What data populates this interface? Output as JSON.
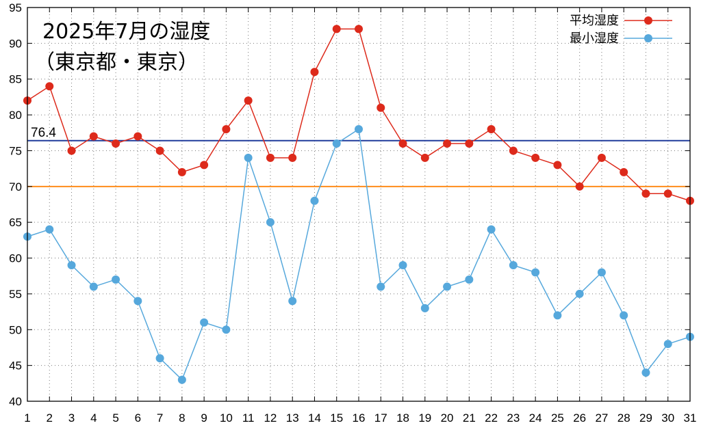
{
  "chart_data": {
    "type": "line",
    "title": "2025年7月の湿度",
    "subtitle": "（東京都・東京）",
    "x": [
      1,
      2,
      3,
      4,
      5,
      6,
      7,
      8,
      9,
      10,
      11,
      12,
      13,
      14,
      15,
      16,
      17,
      18,
      19,
      20,
      21,
      22,
      23,
      24,
      25,
      26,
      27,
      28,
      29,
      30,
      31
    ],
    "xlim": [
      1,
      31
    ],
    "ylim": [
      40,
      95
    ],
    "yticks": [
      40,
      45,
      50,
      55,
      60,
      65,
      70,
      75,
      80,
      85,
      90,
      95
    ],
    "grid": true,
    "legend_position": "top-right",
    "series": [
      {
        "name": "平均湿度",
        "color": "#dd2a1b",
        "values": [
          82,
          84,
          75,
          77,
          76,
          77,
          75,
          72,
          73,
          78,
          82,
          74,
          74,
          86,
          92,
          92,
          81,
          76,
          74,
          76,
          76,
          78,
          75,
          74,
          73,
          70,
          74,
          72,
          69,
          69,
          68
        ]
      },
      {
        "name": "最小湿度",
        "color": "#56a8dc",
        "values": [
          63,
          64,
          59,
          56,
          57,
          54,
          46,
          43,
          51,
          50,
          74,
          65,
          54,
          68,
          76,
          78,
          56,
          59,
          53,
          56,
          57,
          64,
          59,
          58,
          52,
          55,
          58,
          52,
          44,
          48,
          49
        ]
      }
    ],
    "reference_lines": [
      {
        "value": 76.4,
        "label": "76.4",
        "color": "#1f3b9b"
      },
      {
        "value": 70,
        "label": "",
        "color": "#ff8c1a"
      }
    ]
  }
}
